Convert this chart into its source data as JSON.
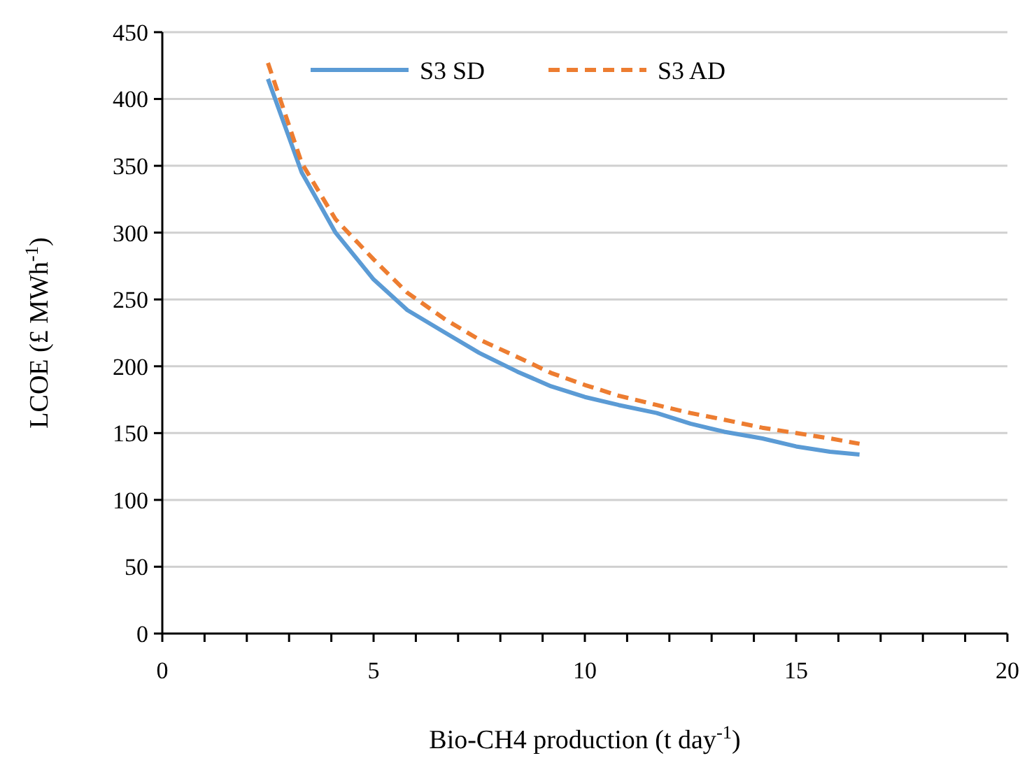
{
  "chart_data": {
    "type": "line",
    "xlabel": "Bio-CH4 production (t day$^{-1}$)",
    "ylabel": "LCOE (£ MWh$^{-1}$)",
    "xlim": [
      0,
      20
    ],
    "ylim": [
      0,
      450
    ],
    "xticks": [
      0,
      {
        "value": 1,
        "label": null
      },
      {
        "value": 2,
        "label": null
      },
      {
        "value": 3,
        "label": null
      },
      {
        "value": 4,
        "label": null
      },
      5,
      {
        "value": 6,
        "label": null
      },
      {
        "value": 7,
        "label": null
      },
      {
        "value": 8,
        "label": null
      },
      {
        "value": 9,
        "label": null
      },
      10,
      {
        "value": 11,
        "label": null
      },
      {
        "value": 12,
        "label": null
      },
      {
        "value": 13,
        "label": null
      },
      {
        "value": 14,
        "label": null
      },
      15,
      {
        "value": 16,
        "label": null
      },
      {
        "value": 17,
        "label": null
      },
      {
        "value": 18,
        "label": null
      },
      {
        "value": 19,
        "label": null
      },
      20
    ],
    "yticks": [
      0,
      50,
      100,
      150,
      200,
      250,
      300,
      350,
      400,
      450
    ],
    "grid": "y",
    "legend": "top",
    "series": [
      {
        "name": "S3 SD",
        "color": "#5b9bd5",
        "line_style": "solid",
        "x": [
          2.5,
          3.3,
          4.1,
          5.0,
          5.8,
          6.7,
          7.5,
          8.4,
          9.2,
          10,
          10.8,
          11.7,
          12.5,
          13.3,
          14.2,
          15,
          15.8,
          16.5
        ],
        "values": [
          415,
          345,
          300,
          265,
          242,
          225,
          210,
          196,
          185,
          177,
          171,
          165,
          157,
          151,
          146,
          140,
          136,
          134
        ]
      },
      {
        "name": "S3 AD",
        "color": "#ed7d31",
        "line_style": "dashed",
        "x": [
          2.5,
          3.3,
          4.1,
          5.0,
          5.8,
          6.7,
          7.5,
          8.4,
          9.2,
          10,
          10.8,
          11.7,
          12.5,
          13.3,
          14.2,
          15,
          15.8,
          16.5
        ],
        "values": [
          427,
          352,
          310,
          280,
          255,
          235,
          220,
          207,
          195,
          186,
          178,
          171,
          165,
          160,
          154,
          150,
          146,
          142
        ]
      }
    ]
  }
}
